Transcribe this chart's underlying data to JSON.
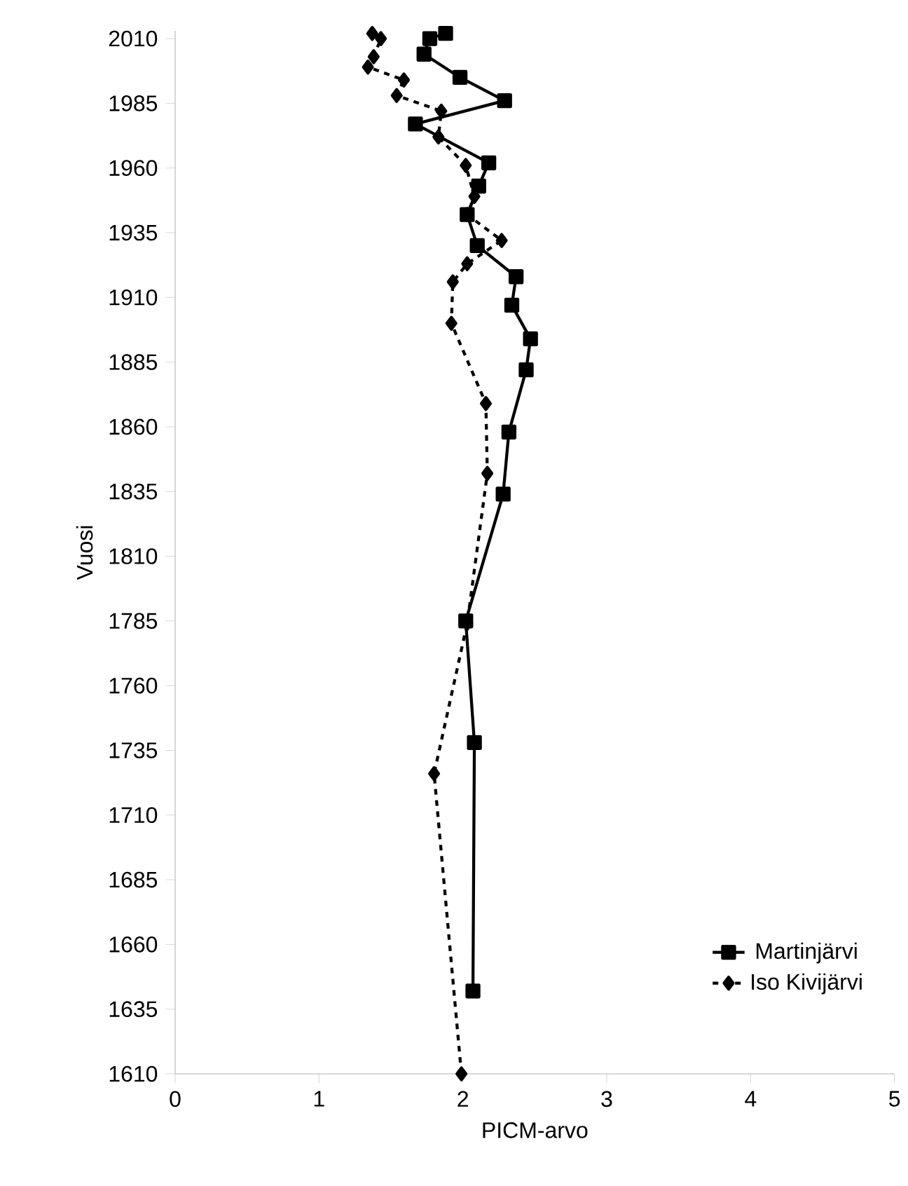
{
  "chart_data": {
    "type": "line",
    "xlabel": "PICM-arvo",
    "ylabel": "Vuosi",
    "xlim": [
      0,
      5
    ],
    "xticks": [
      0,
      1,
      2,
      3,
      4,
      5
    ],
    "ylim": [
      1610,
      2013
    ],
    "yticks": [
      1610,
      1635,
      1660,
      1685,
      1710,
      1735,
      1760,
      1785,
      1810,
      1835,
      1860,
      1885,
      1910,
      1935,
      1960,
      1985,
      2010
    ],
    "grid": false,
    "legend": "bottom right",
    "series": [
      {
        "name": "Martinjärvi",
        "color": "#000000",
        "marker": "square",
        "line_style": "solid",
        "x": [
          2.07,
          2.08,
          2.02,
          2.28,
          2.32,
          2.44,
          2.47,
          2.34,
          2.37,
          2.1,
          2.03,
          2.11,
          2.18,
          1.67,
          2.29,
          1.98,
          1.73,
          1.77,
          1.88
        ],
        "values": [
          1642,
          1738,
          1785,
          1834,
          1858,
          1882,
          1894,
          1907,
          1918,
          1930,
          1942,
          1953,
          1962,
          1977,
          1986,
          1995,
          2004,
          2010,
          2012
        ]
      },
      {
        "name": "Iso Kivijärvi",
        "color": "#000000",
        "marker": "diamond",
        "line_style": "dashed",
        "x": [
          1.99,
          1.8,
          2.03,
          2.17,
          2.16,
          1.92,
          1.93,
          2.03,
          2.27,
          2.03,
          2.08,
          2.02,
          1.83,
          1.85,
          1.54,
          1.59,
          1.34,
          1.38,
          1.43,
          1.37
        ],
        "values": [
          1610,
          1726,
          1784,
          1842,
          1869,
          1900,
          1916,
          1923,
          1932,
          1942,
          1949,
          1961,
          1972,
          1982,
          1988,
          1994,
          1999,
          2003,
          2010,
          2012
        ]
      }
    ]
  }
}
